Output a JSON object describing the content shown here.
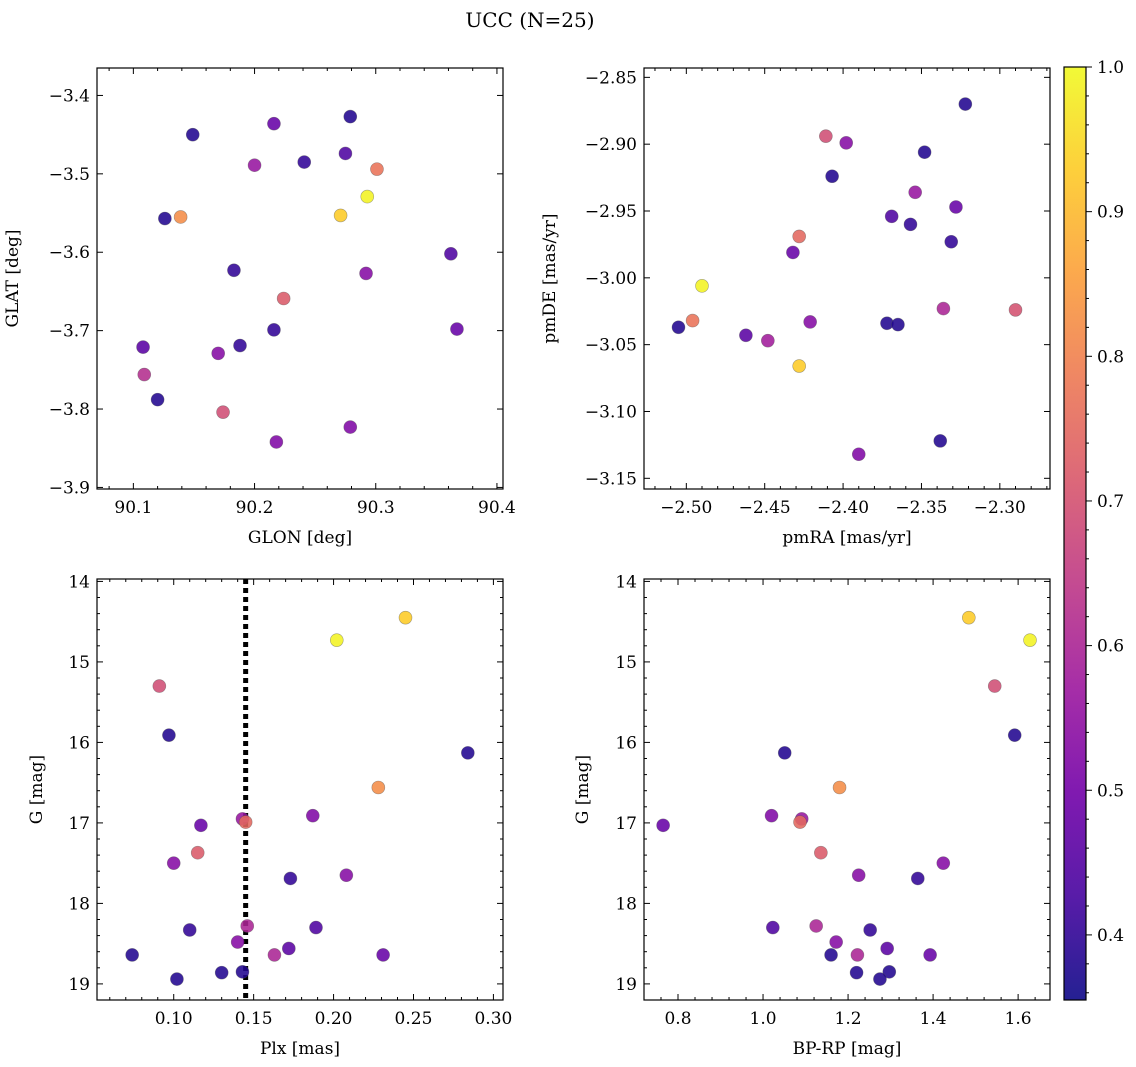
{
  "figure": {
    "title": "UCC (N=25)"
  },
  "colorbar": {
    "range": [
      0.355,
      1.0
    ],
    "ticks": [
      0.4,
      0.5,
      0.6,
      0.7,
      0.8,
      0.9,
      1.0
    ],
    "tick_labels": [
      "0.4",
      "0.5",
      "0.6",
      "0.7",
      "0.8",
      "0.9",
      "1.0"
    ],
    "colormap": "plasma",
    "stops": [
      "#0d0887",
      "#46039f",
      "#7201a8",
      "#9c179e",
      "#bd3786",
      "#d8576b",
      "#ed7953",
      "#fb9f3a",
      "#fdca26",
      "#f0f921"
    ]
  },
  "chart_data": [
    {
      "type": "scatter",
      "title": "",
      "xlabel": "GLON [deg]",
      "ylabel": "GLAT [deg]",
      "xlim": [
        90.07,
        90.405
      ],
      "ylim": [
        -3.902,
        -3.365
      ],
      "xticks": [
        90.1,
        90.2,
        90.3,
        90.4
      ],
      "xtick_labels": [
        "90.1",
        "90.2",
        "90.3",
        "90.4"
      ],
      "yticks": [
        -3.4,
        -3.5,
        -3.6,
        -3.7,
        -3.8,
        -3.9
      ],
      "ytick_labels": [
        "−3.4",
        "−3.5",
        "−3.6",
        "−3.7",
        "−3.8",
        "−3.9"
      ],
      "points": [
        {
          "x": 90.149,
          "y": -3.45,
          "c": 0.38
        },
        {
          "x": 90.216,
          "y": -3.436,
          "c": 0.48
        },
        {
          "x": 90.279,
          "y": -3.427,
          "c": 0.38
        },
        {
          "x": 90.2,
          "y": -3.489,
          "c": 0.56
        },
        {
          "x": 90.241,
          "y": -3.485,
          "c": 0.4
        },
        {
          "x": 90.275,
          "y": -3.474,
          "c": 0.44
        },
        {
          "x": 90.301,
          "y": -3.494,
          "c": 0.77
        },
        {
          "x": 90.293,
          "y": -3.529,
          "c": 0.99
        },
        {
          "x": 90.126,
          "y": -3.557,
          "c": 0.38
        },
        {
          "x": 90.139,
          "y": -3.555,
          "c": 0.82
        },
        {
          "x": 90.271,
          "y": -3.553,
          "c": 0.93
        },
        {
          "x": 90.362,
          "y": -3.602,
          "c": 0.44
        },
        {
          "x": 90.183,
          "y": -3.623,
          "c": 0.4
        },
        {
          "x": 90.292,
          "y": -3.627,
          "c": 0.53
        },
        {
          "x": 90.224,
          "y": -3.659,
          "c": 0.72
        },
        {
          "x": 90.216,
          "y": -3.699,
          "c": 0.4
        },
        {
          "x": 90.367,
          "y": -3.698,
          "c": 0.48
        },
        {
          "x": 90.108,
          "y": -3.721,
          "c": 0.46
        },
        {
          "x": 90.188,
          "y": -3.719,
          "c": 0.4
        },
        {
          "x": 90.17,
          "y": -3.729,
          "c": 0.53
        },
        {
          "x": 90.109,
          "y": -3.756,
          "c": 0.62
        },
        {
          "x": 90.12,
          "y": -3.788,
          "c": 0.38
        },
        {
          "x": 90.174,
          "y": -3.804,
          "c": 0.69
        },
        {
          "x": 90.279,
          "y": -3.823,
          "c": 0.52
        },
        {
          "x": 90.218,
          "y": -3.842,
          "c": 0.52
        }
      ]
    },
    {
      "type": "scatter",
      "title": "",
      "xlabel": "pmRA [mas/yr]",
      "ylabel": "pmDE [mas/yr]",
      "xlim": [
        -2.527,
        -2.268
      ],
      "ylim": [
        -3.158,
        -2.843
      ],
      "xticks": [
        -2.5,
        -2.45,
        -2.4,
        -2.35,
        -2.3
      ],
      "xtick_labels": [
        "−2.50",
        "−2.45",
        "−2.40",
        "−2.35",
        "−2.30"
      ],
      "yticks": [
        -2.85,
        -2.9,
        -2.95,
        -3.0,
        -3.05,
        -3.1,
        -3.15
      ],
      "ytick_labels": [
        "−2.85",
        "−2.90",
        "−2.95",
        "−3.00",
        "−3.05",
        "−3.10",
        "−3.15"
      ],
      "points": [
        {
          "x": -2.322,
          "y": -2.87,
          "c": 0.38
        },
        {
          "x": -2.411,
          "y": -2.894,
          "c": 0.69
        },
        {
          "x": -2.398,
          "y": -2.899,
          "c": 0.53
        },
        {
          "x": -2.348,
          "y": -2.906,
          "c": 0.38
        },
        {
          "x": -2.407,
          "y": -2.924,
          "c": 0.38
        },
        {
          "x": -2.354,
          "y": -2.936,
          "c": 0.56
        },
        {
          "x": -2.328,
          "y": -2.947,
          "c": 0.48
        },
        {
          "x": -2.369,
          "y": -2.954,
          "c": 0.44
        },
        {
          "x": -2.357,
          "y": -2.96,
          "c": 0.4
        },
        {
          "x": -2.428,
          "y": -2.969,
          "c": 0.75
        },
        {
          "x": -2.331,
          "y": -2.973,
          "c": 0.4
        },
        {
          "x": -2.432,
          "y": -2.981,
          "c": 0.48
        },
        {
          "x": -2.49,
          "y": -3.006,
          "c": 0.99
        },
        {
          "x": -2.336,
          "y": -3.023,
          "c": 0.6
        },
        {
          "x": -2.29,
          "y": -3.024,
          "c": 0.7
        },
        {
          "x": -2.496,
          "y": -3.032,
          "c": 0.77
        },
        {
          "x": -2.421,
          "y": -3.033,
          "c": 0.53
        },
        {
          "x": -2.372,
          "y": -3.034,
          "c": 0.38
        },
        {
          "x": -2.365,
          "y": -3.035,
          "c": 0.38
        },
        {
          "x": -2.505,
          "y": -3.037,
          "c": 0.38
        },
        {
          "x": -2.462,
          "y": -3.043,
          "c": 0.46
        },
        {
          "x": -2.448,
          "y": -3.047,
          "c": 0.58
        },
        {
          "x": -2.428,
          "y": -3.066,
          "c": 0.93
        },
        {
          "x": -2.338,
          "y": -3.122,
          "c": 0.38
        },
        {
          "x": -2.39,
          "y": -3.132,
          "c": 0.52
        }
      ]
    },
    {
      "type": "scatter",
      "title": "",
      "xlabel": "Plx [mas]",
      "ylabel": "G [mag]",
      "xlim": [
        0.052,
        0.306
      ],
      "ylim": [
        19.2,
        13.97
      ],
      "xticks": [
        0.1,
        0.15,
        0.2,
        0.25,
        0.3
      ],
      "xtick_labels": [
        "0.10",
        "0.15",
        "0.20",
        "0.25",
        "0.30"
      ],
      "yticks": [
        14,
        15,
        16,
        17,
        18,
        19
      ],
      "ytick_labels": [
        "14",
        "15",
        "16",
        "17",
        "18",
        "19"
      ],
      "vline": {
        "x": 0.145,
        "style": "dotted",
        "color": "#000000"
      },
      "points": [
        {
          "x": 0.245,
          "y": 14.45,
          "c": 0.93
        },
        {
          "x": 0.202,
          "y": 14.73,
          "c": 0.99
        },
        {
          "x": 0.091,
          "y": 15.3,
          "c": 0.69
        },
        {
          "x": 0.097,
          "y": 15.91,
          "c": 0.38
        },
        {
          "x": 0.284,
          "y": 16.13,
          "c": 0.38
        },
        {
          "x": 0.228,
          "y": 16.56,
          "c": 0.82
        },
        {
          "x": 0.187,
          "y": 16.91,
          "c": 0.52
        },
        {
          "x": 0.143,
          "y": 16.95,
          "c": 0.56
        },
        {
          "x": 0.145,
          "y": 16.99,
          "c": 0.75
        },
        {
          "x": 0.117,
          "y": 17.03,
          "c": 0.48
        },
        {
          "x": 0.115,
          "y": 17.37,
          "c": 0.72
        },
        {
          "x": 0.1,
          "y": 17.5,
          "c": 0.53
        },
        {
          "x": 0.208,
          "y": 17.65,
          "c": 0.53
        },
        {
          "x": 0.173,
          "y": 17.69,
          "c": 0.4
        },
        {
          "x": 0.146,
          "y": 18.28,
          "c": 0.6
        },
        {
          "x": 0.189,
          "y": 18.3,
          "c": 0.44
        },
        {
          "x": 0.11,
          "y": 18.33,
          "c": 0.4
        },
        {
          "x": 0.14,
          "y": 18.48,
          "c": 0.53
        },
        {
          "x": 0.172,
          "y": 18.56,
          "c": 0.46
        },
        {
          "x": 0.163,
          "y": 18.64,
          "c": 0.6
        },
        {
          "x": 0.231,
          "y": 18.64,
          "c": 0.48
        },
        {
          "x": 0.074,
          "y": 18.64,
          "c": 0.38
        },
        {
          "x": 0.13,
          "y": 18.86,
          "c": 0.38
        },
        {
          "x": 0.143,
          "y": 18.85,
          "c": 0.38
        },
        {
          "x": 0.102,
          "y": 18.94,
          "c": 0.38
        }
      ]
    },
    {
      "type": "scatter",
      "title": "",
      "xlabel": "BP-RP [mag]",
      "ylabel": "G [mag]",
      "xlim": [
        0.72,
        1.675
      ],
      "ylim": [
        19.2,
        13.97
      ],
      "xticks": [
        0.8,
        1.0,
        1.2,
        1.4,
        1.6
      ],
      "xtick_labels": [
        "0.8",
        "1.0",
        "1.2",
        "1.4",
        "1.6"
      ],
      "yticks": [
        14,
        15,
        16,
        17,
        18,
        19
      ],
      "ytick_labels": [
        "14",
        "15",
        "16",
        "17",
        "18",
        "19"
      ],
      "points": [
        {
          "x": 1.484,
          "y": 14.45,
          "c": 0.93
        },
        {
          "x": 1.628,
          "y": 14.73,
          "c": 0.99
        },
        {
          "x": 1.545,
          "y": 15.3,
          "c": 0.69
        },
        {
          "x": 1.592,
          "y": 15.91,
          "c": 0.38
        },
        {
          "x": 1.051,
          "y": 16.13,
          "c": 0.38
        },
        {
          "x": 1.18,
          "y": 16.56,
          "c": 0.82
        },
        {
          "x": 1.02,
          "y": 16.91,
          "c": 0.52
        },
        {
          "x": 1.091,
          "y": 16.95,
          "c": 0.56
        },
        {
          "x": 1.087,
          "y": 16.99,
          "c": 0.75
        },
        {
          "x": 0.765,
          "y": 17.03,
          "c": 0.48
        },
        {
          "x": 1.136,
          "y": 17.37,
          "c": 0.72
        },
        {
          "x": 1.424,
          "y": 17.5,
          "c": 0.53
        },
        {
          "x": 1.225,
          "y": 17.65,
          "c": 0.53
        },
        {
          "x": 1.364,
          "y": 17.69,
          "c": 0.4
        },
        {
          "x": 1.125,
          "y": 18.28,
          "c": 0.6
        },
        {
          "x": 1.023,
          "y": 18.3,
          "c": 0.44
        },
        {
          "x": 1.252,
          "y": 18.33,
          "c": 0.4
        },
        {
          "x": 1.172,
          "y": 18.48,
          "c": 0.53
        },
        {
          "x": 1.292,
          "y": 18.56,
          "c": 0.46
        },
        {
          "x": 1.222,
          "y": 18.64,
          "c": 0.6
        },
        {
          "x": 1.393,
          "y": 18.64,
          "c": 0.48
        },
        {
          "x": 1.16,
          "y": 18.64,
          "c": 0.38
        },
        {
          "x": 1.22,
          "y": 18.86,
          "c": 0.38
        },
        {
          "x": 1.297,
          "y": 18.85,
          "c": 0.38
        },
        {
          "x": 1.275,
          "y": 18.94,
          "c": 0.38
        }
      ]
    }
  ]
}
